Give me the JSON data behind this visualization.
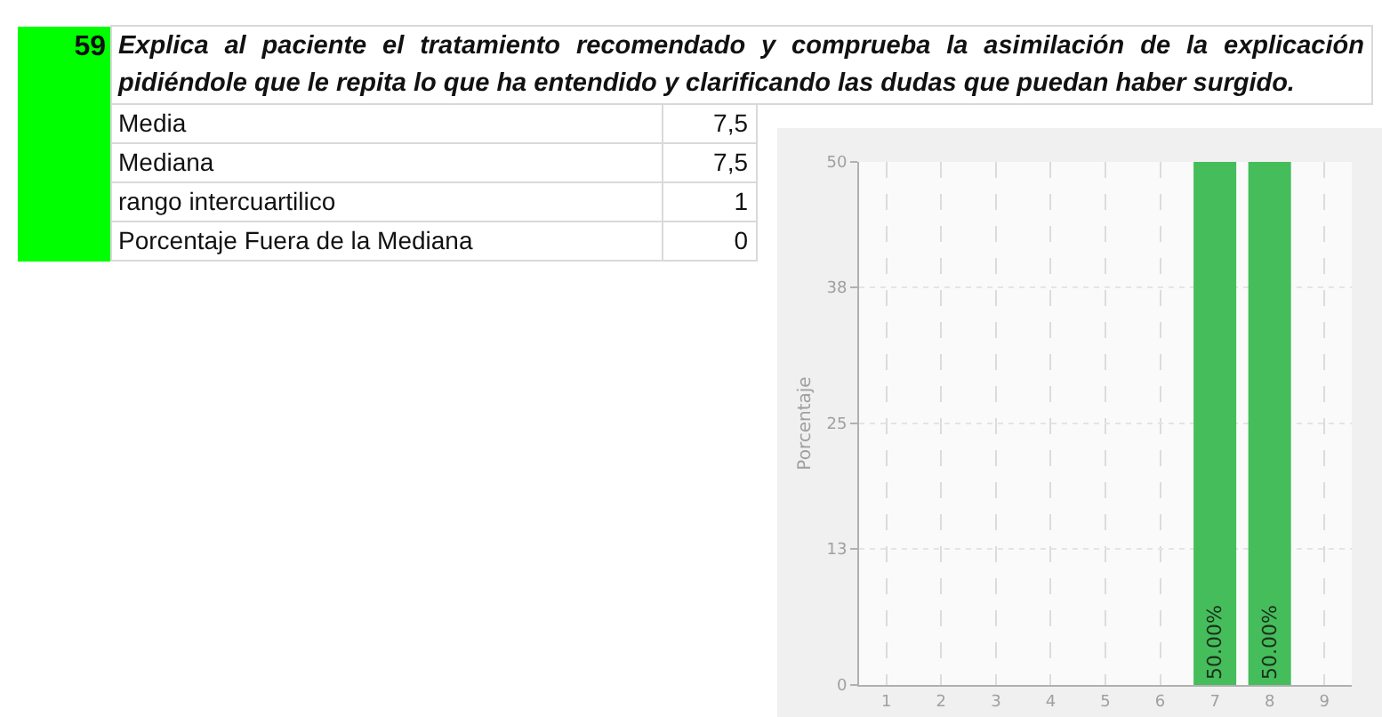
{
  "chart_data": [
    {
      "type": "other",
      "title": "Explica al paciente el tratamiento recomendado y comprueba la asimilación de la explicación pidiéndole que le repita lo que ha entendido y clarificando las dudas que puedan haber surgido.",
      "annotations": [
        "59",
        "Media",
        "7,5",
        "Mediana",
        "7,5",
        "rango intercuartilico",
        "1",
        "Porcentaje Fuera de la Mediana",
        "0"
      ]
    },
    {
      "type": "bar",
      "categories": [
        "1",
        "2",
        "3",
        "4",
        "5",
        "6",
        "7",
        "8",
        "9"
      ],
      "values": [
        0,
        0,
        0,
        0,
        0,
        0,
        50,
        50,
        0
      ],
      "color": "#45bd5b",
      "ylabel": "Porcentaje",
      "ylim": [
        0,
        50
      ],
      "yticks": [
        0,
        13,
        25,
        38,
        50
      ],
      "grid": true,
      "value_labels": [
        null,
        null,
        null,
        null,
        null,
        null,
        "50.00%",
        "50.00%",
        null
      ]
    }
  ]
}
